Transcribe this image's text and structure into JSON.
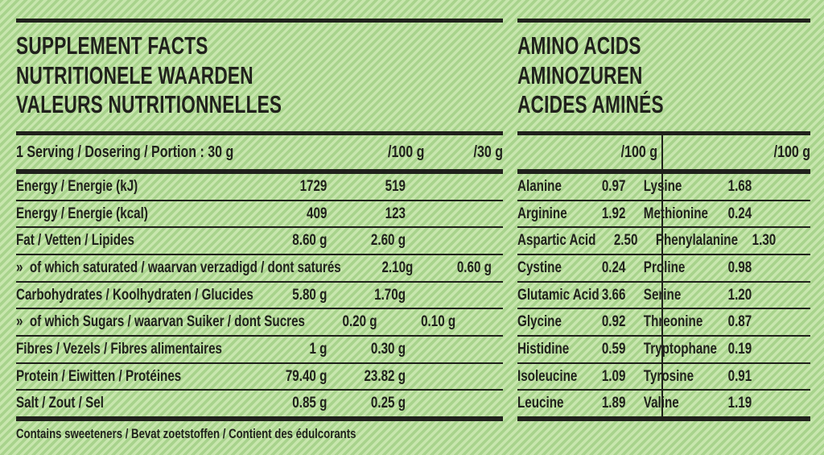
{
  "colors": {
    "background_base": "#aad58f",
    "background_stripe": "#c8e6ae",
    "ink": "#20211c"
  },
  "left_panel": {
    "title_lines": [
      "SUPPLEMENT FACTS",
      "NUTRITIONELE WAARDEN",
      "VALEURS NUTRITIONNELLES"
    ],
    "header": {
      "label": "1 Serving / Dosering / Portion : 30 g",
      "col1": "/100 g",
      "col2": "/30 g"
    },
    "rows": [
      {
        "label": "Energy / Energie (kJ)",
        "per100": "1729",
        "per30": "519"
      },
      {
        "label": "Energy / Energie (kcal)",
        "per100": "409",
        "per30": "123"
      },
      {
        "label": "Fat / Vetten / Lipides",
        "per100": "8.60 g",
        "per30": "2.60 g"
      },
      {
        "label": "»  of which saturated / waarvan verzadigd / dont saturés",
        "per100": "2.10g",
        "per30": "0.60 g"
      },
      {
        "label": "Carbohydrates / Koolhydraten / Glucides",
        "per100": "5.80 g",
        "per30": "1.70g"
      },
      {
        "label": "»  of which Sugars / waarvan Suiker / dont Sucres",
        "per100": "0.20 g",
        "per30": "0.10 g"
      },
      {
        "label": "Fibres / Vezels / Fibres alimentaires",
        "per100": "1 g",
        "per30": "0.30 g"
      },
      {
        "label": "Protein / Eiwitten / Protéines",
        "per100": "79.40 g",
        "per30": "23.82 g"
      },
      {
        "label": "Salt / Zout / Sel",
        "per100": "0.85 g",
        "per30": "0.25 g"
      }
    ],
    "footnote": "Contains sweeteners / Bevat zoetstoffen / Contient des édulcorants"
  },
  "right_panel": {
    "title_lines": [
      "AMINO ACIDS",
      "AMINOZUREN",
      "ACIDES AMINÉS"
    ],
    "header": {
      "col1": "/100 g",
      "col2": "/100 g"
    },
    "rows": [
      {
        "name1": "Alanine",
        "val1": "0.97",
        "name2": "Lysine",
        "val2": "1.68"
      },
      {
        "name1": "Arginine",
        "val1": "1.92",
        "name2": "Methionine",
        "val2": "0.24"
      },
      {
        "name1": "Aspartic Acid",
        "val1": "2.50",
        "name2": "Phenylalanine",
        "val2": "1.30"
      },
      {
        "name1": "Cystine",
        "val1": "0.24",
        "name2": "Proline",
        "val2": "0.98"
      },
      {
        "name1": "Glutamic Acid",
        "val1": "3.66",
        "name2": "Serine",
        "val2": "1.20"
      },
      {
        "name1": "Glycine",
        "val1": "0.92",
        "name2": "Threonine",
        "val2": "0.87"
      },
      {
        "name1": "Histidine",
        "val1": "0.59",
        "name2": "Tryptophane",
        "val2": "0.19"
      },
      {
        "name1": "Isoleucine",
        "val1": "1.09",
        "name2": "Tyrosine",
        "val2": "0.91"
      },
      {
        "name1": "Leucine",
        "val1": "1.89",
        "name2": "Valine",
        "val2": "1.19"
      }
    ]
  }
}
